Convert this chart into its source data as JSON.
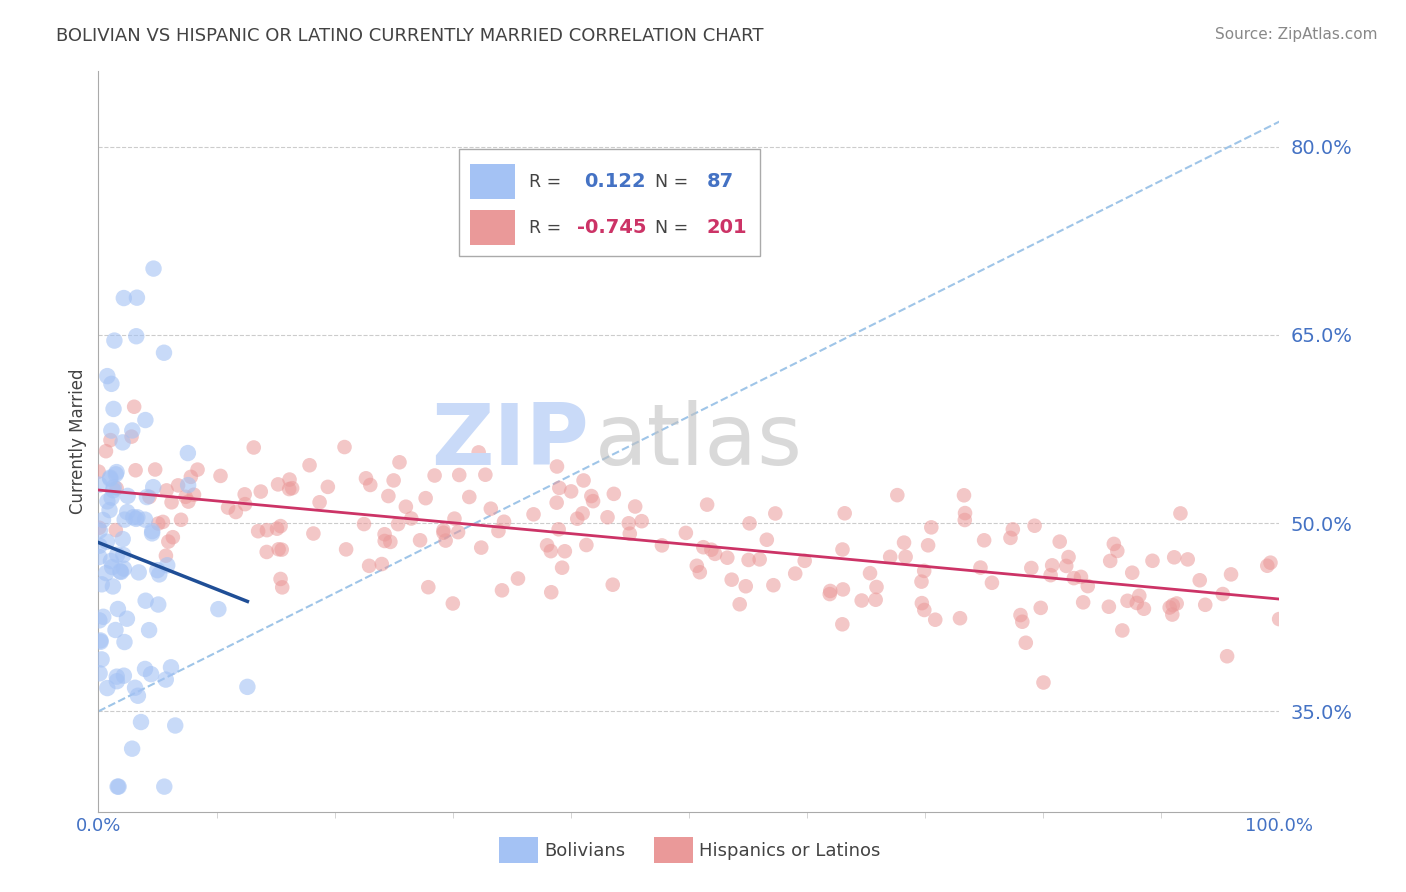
{
  "title": "BOLIVIAN VS HISPANIC OR LATINO CURRENTLY MARRIED CORRELATION CHART",
  "source": "Source: ZipAtlas.com",
  "ylabel": "Currently Married",
  "yticks": [
    0.35,
    0.5,
    0.65,
    0.8
  ],
  "ytick_labels": [
    "35.0%",
    "50.0%",
    "65.0%",
    "80.0%"
  ],
  "xlim": [
    0.0,
    1.0
  ],
  "ylim": [
    0.27,
    0.86
  ],
  "bolivians_R": 0.122,
  "bolivians_N": 87,
  "hispanics_R": -0.745,
  "hispanics_N": 201,
  "blue_color": "#a4c2f4",
  "pink_color": "#ea9999",
  "blue_line_color": "#1f4e96",
  "pink_line_color": "#cc3366",
  "dashed_line_color": "#9fc5e8",
  "title_color": "#434343",
  "source_color": "#888888",
  "tick_label_color": "#4472c4",
  "watermark_main_color": "#c9daf8",
  "watermark_accent_color": "#434343",
  "background_color": "#ffffff",
  "grid_color": "#cccccc",
  "legend_text_color": "#434343",
  "legend_blue_val_color": "#4472c4",
  "legend_pink_val_color": "#cc3366"
}
